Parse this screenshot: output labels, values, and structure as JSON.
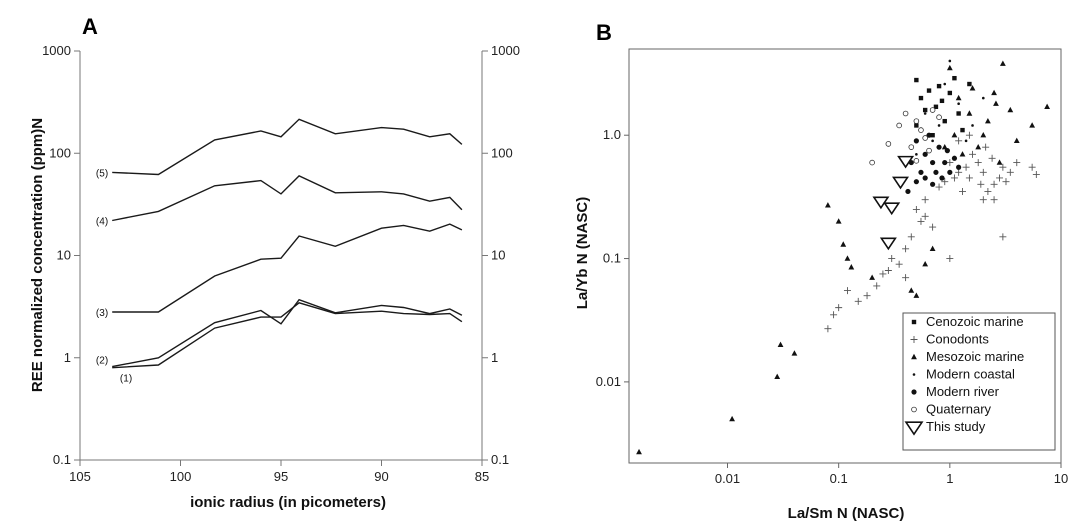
{
  "chart_data": [
    {
      "type": "line",
      "panel_label": "A",
      "xlabel": "ionic radius (in picometers)",
      "ylabel": "REE normalized concentration (ppm)N",
      "xlim": [
        105,
        85
      ],
      "ylim": [
        0.1,
        1000
      ],
      "y_scale": "log",
      "x_ticks": [
        "105",
        "100",
        "95",
        "90",
        "85"
      ],
      "y_ticks_left": [
        "1000",
        "100",
        "10",
        "1",
        "0.1"
      ],
      "y_ticks_right": [
        "1000",
        "100",
        "10",
        "1",
        "0.1"
      ],
      "x": [
        103.4,
        101.1,
        98.3,
        96.0,
        95.0,
        94.1,
        92.3,
        90.0,
        88.9,
        87.6,
        86.6,
        86.0
      ],
      "series": [
        {
          "name": "(5)",
          "values": [
            65,
            62,
            135,
            165,
            145,
            215,
            155,
            178,
            172,
            145,
            155,
            122
          ]
        },
        {
          "name": "(4)",
          "values": [
            22,
            27,
            48,
            54,
            40,
            60,
            41,
            42,
            40,
            34,
            37,
            28
          ]
        },
        {
          "name": "(3)",
          "values": [
            2.8,
            2.8,
            6.3,
            9.2,
            9.4,
            15.5,
            12.3,
            18.5,
            19.7,
            17.3,
            20.3,
            17.8
          ]
        },
        {
          "name": "(2)",
          "values": [
            0.82,
            1.0,
            2.2,
            2.9,
            2.15,
            3.7,
            2.75,
            3.25,
            3.1,
            2.7,
            3.0,
            2.6
          ]
        },
        {
          "name": "(1)",
          "values": [
            0.8,
            0.85,
            1.95,
            2.5,
            2.5,
            3.45,
            2.7,
            2.85,
            2.7,
            2.65,
            2.7,
            2.25
          ]
        }
      ]
    },
    {
      "type": "scatter",
      "panel_label": "B",
      "xlabel": "La/Sm N (NASC)",
      "ylabel": "La/Yb N (NASC)",
      "x_scale": "log",
      "y_scale": "log",
      "xlim": [
        0.0013,
        10
      ],
      "ylim": [
        0.0022,
        5
      ],
      "x_ticks": [
        "0.01",
        "0.1",
        "1",
        "10"
      ],
      "y_ticks": [
        "1.0",
        "0.1",
        "0.01"
      ],
      "legend_position": "bottom-right",
      "series": [
        {
          "name": "Cenozoic marine",
          "marker": "square",
          "points": [
            [
              0.5,
              2.8
            ],
            [
              0.55,
              2.0
            ],
            [
              0.6,
              1.6
            ],
            [
              0.8,
              2.5
            ],
            [
              0.85,
              1.9
            ],
            [
              0.5,
              1.2
            ],
            [
              1.0,
              2.2
            ],
            [
              1.2,
              1.5
            ],
            [
              0.7,
              1.0
            ],
            [
              1.5,
              2.6
            ],
            [
              0.9,
              1.3
            ],
            [
              0.65,
              2.3
            ],
            [
              1.3,
              1.1
            ],
            [
              0.75,
              1.7
            ],
            [
              1.1,
              2.9
            ]
          ]
        },
        {
          "name": "Conodonts",
          "marker": "plus",
          "points": [
            [
              1.2,
              0.5
            ],
            [
              1.5,
              0.45
            ],
            [
              1.8,
              0.6
            ],
            [
              2.0,
              0.5
            ],
            [
              2.5,
              0.4
            ],
            [
              3.0,
              0.55
            ],
            [
              1.3,
              0.35
            ],
            [
              1.0,
              0.6
            ],
            [
              2.2,
              0.35
            ],
            [
              2.8,
              0.45
            ],
            [
              1.6,
              0.7
            ],
            [
              3.5,
              0.5
            ],
            [
              4.0,
              0.6
            ],
            [
              1.1,
              0.45
            ],
            [
              1.9,
              0.4
            ],
            [
              2.4,
              0.65
            ],
            [
              1.4,
              0.55
            ],
            [
              2.1,
              0.8
            ],
            [
              3.2,
              0.42
            ],
            [
              5.5,
              0.55
            ],
            [
              6.0,
              0.48
            ],
            [
              0.9,
              0.42
            ],
            [
              0.8,
              0.38
            ],
            [
              0.6,
              0.3
            ],
            [
              0.55,
              0.2
            ],
            [
              0.45,
              0.15
            ],
            [
              0.4,
              0.12
            ],
            [
              0.3,
              0.1
            ],
            [
              0.28,
              0.08
            ],
            [
              0.25,
              0.075
            ],
            [
              0.22,
              0.06
            ],
            [
              0.18,
              0.05
            ],
            [
              0.15,
              0.045
            ],
            [
              0.12,
              0.055
            ],
            [
              0.1,
              0.04
            ],
            [
              0.09,
              0.035
            ],
            [
              0.08,
              0.027
            ],
            [
              0.35,
              0.09
            ],
            [
              0.5,
              0.25
            ],
            [
              0.6,
              0.22
            ],
            [
              0.7,
              0.18
            ],
            [
              1.0,
              0.1
            ],
            [
              0.4,
              0.07
            ],
            [
              2.0,
              0.3
            ],
            [
              3.0,
              0.15
            ],
            [
              1.5,
              1.0
            ],
            [
              1.2,
              0.9
            ],
            [
              2.5,
              0.3
            ]
          ]
        },
        {
          "name": "Mesozoic marine",
          "marker": "triangle",
          "points": [
            [
              1.0,
              3.5
            ],
            [
              1.2,
              2.0
            ],
            [
              1.5,
              1.5
            ],
            [
              2.0,
              1.0
            ],
            [
              2.5,
              2.2
            ],
            [
              3.0,
              3.8
            ],
            [
              1.8,
              0.8
            ],
            [
              2.2,
              1.3
            ],
            [
              3.5,
              1.6
            ],
            [
              1.1,
              1.0
            ],
            [
              0.9,
              0.8
            ],
            [
              1.3,
              0.7
            ],
            [
              5.5,
              1.2
            ],
            [
              7.5,
              1.7
            ],
            [
              0.08,
              0.27
            ],
            [
              0.1,
              0.2
            ],
            [
              0.11,
              0.13
            ],
            [
              0.12,
              0.1
            ],
            [
              0.13,
              0.085
            ],
            [
              0.04,
              0.017
            ],
            [
              0.03,
              0.02
            ],
            [
              0.028,
              0.011
            ],
            [
              0.011,
              0.005
            ],
            [
              0.0016,
              0.0027
            ],
            [
              0.5,
              0.05
            ],
            [
              0.45,
              0.055
            ],
            [
              0.7,
              0.12
            ],
            [
              2.8,
              0.6
            ],
            [
              1.6,
              2.4
            ],
            [
              2.6,
              1.8
            ],
            [
              4.0,
              0.9
            ],
            [
              0.6,
              0.09
            ],
            [
              0.2,
              0.07
            ]
          ]
        },
        {
          "name": "Modern coastal",
          "marker": "dot",
          "points": [
            [
              0.6,
              1.5
            ],
            [
              0.8,
              1.2
            ],
            [
              1.0,
              4.0
            ],
            [
              0.7,
              0.9
            ],
            [
              1.2,
              1.8
            ],
            [
              0.9,
              2.6
            ],
            [
              1.6,
              1.2
            ],
            [
              0.5,
              0.7
            ],
            [
              1.4,
              0.9
            ],
            [
              2.0,
              2.0
            ]
          ]
        },
        {
          "name": "Modern river",
          "marker": "circle",
          "points": [
            [
              0.5,
              0.9
            ],
            [
              0.6,
              0.7
            ],
            [
              0.7,
              0.6
            ],
            [
              0.55,
              0.5
            ],
            [
              0.8,
              0.8
            ],
            [
              0.9,
              0.6
            ],
            [
              1.0,
              0.5
            ],
            [
              0.65,
              1.0
            ],
            [
              0.75,
              0.5
            ],
            [
              1.1,
              0.65
            ],
            [
              0.45,
              0.6
            ],
            [
              0.5,
              0.42
            ],
            [
              0.42,
              0.35
            ],
            [
              0.6,
              0.45
            ],
            [
              0.85,
              0.45
            ],
            [
              1.2,
              0.55
            ],
            [
              0.95,
              0.75
            ],
            [
              0.7,
              0.4
            ]
          ]
        },
        {
          "name": "Quaternary",
          "marker": "ring",
          "points": [
            [
              0.4,
              1.5
            ],
            [
              0.5,
              1.3
            ],
            [
              0.45,
              0.8
            ],
            [
              0.55,
              1.1
            ],
            [
              0.6,
              0.95
            ],
            [
              0.35,
              1.2
            ],
            [
              0.2,
              0.6
            ],
            [
              0.28,
              0.85
            ],
            [
              0.7,
              1.6
            ],
            [
              0.65,
              0.75
            ],
            [
              0.5,
              0.62
            ],
            [
              0.8,
              1.4
            ]
          ]
        },
        {
          "name": "This study",
          "marker": "triangle-down",
          "points": [
            [
              0.4,
              0.62
            ],
            [
              0.36,
              0.42
            ],
            [
              0.24,
              0.29
            ],
            [
              0.3,
              0.26
            ],
            [
              0.28,
              0.135
            ]
          ]
        }
      ]
    }
  ]
}
